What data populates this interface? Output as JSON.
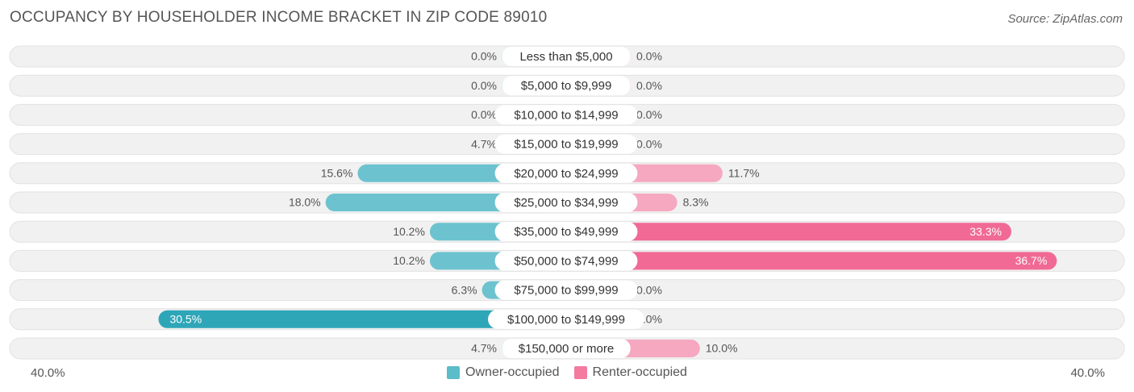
{
  "title": "OCCUPANCY BY HOUSEHOLDER INCOME BRACKET IN ZIP CODE 89010",
  "source": "Source: ZipAtlas.com",
  "axis": {
    "left_label": "40.0%",
    "right_label": "40.0%"
  },
  "legend": [
    {
      "name": "Owner-occupied",
      "color": "#5bbcca"
    },
    {
      "name": "Renter-occupied",
      "color": "#f47aa0"
    }
  ],
  "colors": {
    "owner": "#6cc3cf",
    "owner_strong": "#2ea6b8",
    "renter": "#f6a8c1",
    "renter_strong": "#f06a95",
    "row_bg": "#f1f1f1"
  },
  "chart_data": {
    "type": "bar",
    "orientation": "horizontal-diverging",
    "title": "OCCUPANCY BY HOUSEHOLDER INCOME BRACKET IN ZIP CODE 89010",
    "xlim": [
      -40,
      40
    ],
    "categories": [
      "Less than $5,000",
      "$5,000 to $9,999",
      "$10,000 to $14,999",
      "$15,000 to $19,999",
      "$20,000 to $24,999",
      "$25,000 to $34,999",
      "$35,000 to $49,999",
      "$50,000 to $74,999",
      "$75,000 to $99,999",
      "$100,000 to $149,999",
      "$150,000 or more"
    ],
    "series": [
      {
        "name": "Owner-occupied",
        "values": [
          0.0,
          0.0,
          0.0,
          4.7,
          15.6,
          18.0,
          10.2,
          10.2,
          6.3,
          30.5,
          4.7
        ],
        "labels": [
          "0.0%",
          "0.0%",
          "0.0%",
          "4.7%",
          "15.6%",
          "18.0%",
          "10.2%",
          "10.2%",
          "6.3%",
          "30.5%",
          "4.7%"
        ]
      },
      {
        "name": "Renter-occupied",
        "values": [
          0.0,
          0.0,
          0.0,
          0.0,
          11.7,
          8.3,
          33.3,
          36.7,
          0.0,
          0.0,
          10.0
        ],
        "labels": [
          "0.0%",
          "0.0%",
          "0.0%",
          "0.0%",
          "11.7%",
          "8.3%",
          "33.3%",
          "36.7%",
          "0.0%",
          "0.0%",
          "10.0%"
        ]
      }
    ],
    "legend_position": "bottom-center"
  }
}
